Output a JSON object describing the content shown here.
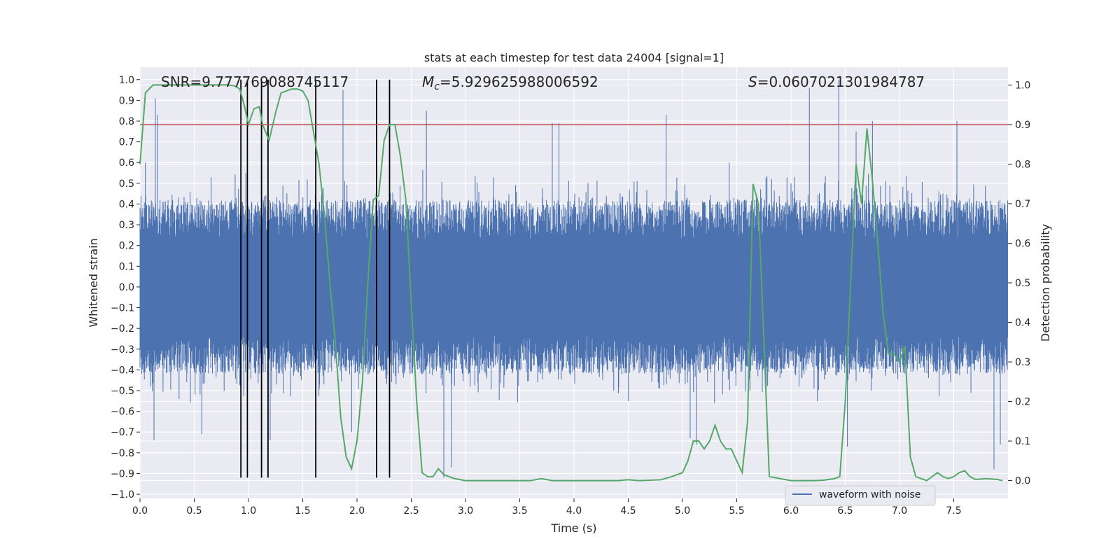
{
  "chart_data": {
    "type": "line",
    "title": "stats at each timestep for test data 24004 [signal=1]",
    "xlabel": "Time (s)",
    "ylabel": "Whitened strain",
    "y2label": "Detection probability",
    "xlim": [
      0.0,
      8.0
    ],
    "ylim": [
      -1.02,
      1.06
    ],
    "y2lim": [
      -0.045,
      1.045
    ],
    "grid": true,
    "x_ticks": [
      0.0,
      0.5,
      1.0,
      1.5,
      2.0,
      2.5,
      3.0,
      3.5,
      4.0,
      4.5,
      5.0,
      5.5,
      6.0,
      6.5,
      7.0,
      7.5
    ],
    "x_tick_labels": [
      "0.0",
      "0.5",
      "1.0",
      "1.5",
      "2.0",
      "2.5",
      "3.0",
      "3.5",
      "4.0",
      "4.5",
      "5.0",
      "5.5",
      "6.0",
      "6.5",
      "7.0",
      "7.5"
    ],
    "y_ticks": [
      1.0,
      0.9,
      0.8,
      0.7,
      0.6,
      0.5,
      0.4,
      0.3,
      0.2,
      0.1,
      0.0,
      -0.1,
      -0.2,
      -0.3,
      -0.4,
      -0.5,
      -0.6,
      -0.7,
      -0.8,
      -0.9,
      -1.0
    ],
    "y_tick_labels": [
      "1.0",
      "0.9",
      "0.8",
      "0.7",
      "0.6",
      "0.5",
      "0.4",
      "0.3",
      "0.2",
      "0.1",
      "0.0",
      "−0.1",
      "−0.2",
      "−0.3",
      "−0.4",
      "−0.5",
      "−0.6",
      "−0.7",
      "−0.8",
      "−0.9",
      "−1.0"
    ],
    "y2_ticks": [
      1.0,
      0.9,
      0.8,
      0.7,
      0.6,
      0.5,
      0.4,
      0.3,
      0.2,
      0.1,
      0.0
    ],
    "y2_tick_labels": [
      "1.0",
      "0.9",
      "0.8",
      "0.7",
      "0.6",
      "0.5",
      "0.4",
      "0.3",
      "0.2",
      "0.1",
      "0.0"
    ],
    "annotations": {
      "snr": "SNR=9.777769088745117",
      "mc_symbol": "M",
      "mc_subscript": "c",
      "mc_value": "=5.929625988006592",
      "s_symbol": "S",
      "s_value": "=0.0607021301984787"
    },
    "legend": {
      "label": "waveform with noise",
      "position": "lower-right"
    },
    "threshold": {
      "axis": "right",
      "value": 0.9
    },
    "event_lines": {
      "times": [
        0.93,
        0.99,
        1.12,
        1.18,
        1.62,
        2.18,
        2.3
      ],
      "ymin": -0.92,
      "ymax": 1.0
    },
    "waveform": {
      "name": "waveform with noise",
      "duration": 8.0,
      "samples": 2600,
      "band_amplitude": 0.42,
      "spike_peaks": [
        [
          0.05,
          0.6
        ],
        [
          0.14,
          0.91
        ],
        [
          0.16,
          0.83
        ],
        [
          0.13,
          -0.74
        ],
        [
          0.57,
          -0.71
        ],
        [
          0.93,
          0.78
        ],
        [
          1.12,
          0.76
        ],
        [
          1.18,
          -0.73
        ],
        [
          1.2,
          -0.74
        ],
        [
          1.87,
          0.95
        ],
        [
          1.95,
          -0.7
        ],
        [
          2.64,
          0.85
        ],
        [
          2.8,
          -0.92
        ],
        [
          2.87,
          -0.87
        ],
        [
          3.8,
          0.79
        ],
        [
          3.86,
          0.79
        ],
        [
          4.85,
          0.83
        ],
        [
          5.07,
          -0.73
        ],
        [
          5.13,
          -0.76
        ],
        [
          5.43,
          0.6
        ],
        [
          6.17,
          0.96
        ],
        [
          6.44,
          1.0
        ],
        [
          6.52,
          -0.77
        ],
        [
          6.6,
          0.75
        ],
        [
          6.75,
          0.8
        ],
        [
          7.53,
          0.8
        ],
        [
          7.87,
          -0.88
        ],
        [
          7.93,
          -0.76
        ]
      ],
      "color": "#4c72b0"
    },
    "series": [
      {
        "name": "detection probability",
        "axis": "right",
        "color": "#55a868",
        "x": [
          0.0,
          0.05,
          0.12,
          0.2,
          0.3,
          0.4,
          0.5,
          0.6,
          0.7,
          0.8,
          0.87,
          0.92,
          0.96,
          1.0,
          1.05,
          1.1,
          1.13,
          1.19,
          1.25,
          1.3,
          1.35,
          1.4,
          1.45,
          1.5,
          1.55,
          1.6,
          1.65,
          1.7,
          1.75,
          1.8,
          1.85,
          1.9,
          1.95,
          2.0,
          2.05,
          2.1,
          2.15,
          2.2,
          2.25,
          2.3,
          2.35,
          2.4,
          2.45,
          2.5,
          2.55,
          2.6,
          2.65,
          2.7,
          2.75,
          2.8,
          2.85,
          2.9,
          3.0,
          3.2,
          3.4,
          3.6,
          3.7,
          3.8,
          4.0,
          4.2,
          4.4,
          4.5,
          4.6,
          4.8,
          4.9,
          5.0,
          5.05,
          5.1,
          5.15,
          5.2,
          5.25,
          5.3,
          5.35,
          5.4,
          5.45,
          5.5,
          5.55,
          5.6,
          5.65,
          5.7,
          5.8,
          6.0,
          6.2,
          6.3,
          6.35,
          6.4,
          6.45,
          6.5,
          6.55,
          6.6,
          6.65,
          6.7,
          6.75,
          6.8,
          6.85,
          6.9,
          6.95,
          7.0,
          7.05,
          7.1,
          7.15,
          7.2,
          7.25,
          7.3,
          7.35,
          7.4,
          7.45,
          7.5,
          7.55,
          7.6,
          7.65,
          7.7,
          7.8,
          7.9,
          7.95
        ],
        "y": [
          0.8,
          0.98,
          1.0,
          1.0,
          1.0,
          1.0,
          1.0,
          1.0,
          1.0,
          1.0,
          0.998,
          0.99,
          0.95,
          0.9,
          0.94,
          0.945,
          0.9,
          0.86,
          0.93,
          0.98,
          0.985,
          0.99,
          0.99,
          0.985,
          0.96,
          0.88,
          0.8,
          0.67,
          0.5,
          0.35,
          0.16,
          0.06,
          0.03,
          0.1,
          0.25,
          0.5,
          0.71,
          0.72,
          0.86,
          0.9,
          0.9,
          0.82,
          0.71,
          0.45,
          0.2,
          0.02,
          0.01,
          0.01,
          0.03,
          0.015,
          0.01,
          0.005,
          0.0,
          0.0,
          0.0,
          0.0,
          0.005,
          0.0,
          0.0,
          0.0,
          0.0,
          0.002,
          0.0,
          0.002,
          0.01,
          0.02,
          0.05,
          0.1,
          0.1,
          0.08,
          0.1,
          0.14,
          0.1,
          0.08,
          0.08,
          0.05,
          0.02,
          0.15,
          0.75,
          0.7,
          0.01,
          0.0,
          0.0,
          0.001,
          0.003,
          0.005,
          0.01,
          0.2,
          0.5,
          0.8,
          0.7,
          0.89,
          0.76,
          0.6,
          0.42,
          0.32,
          0.32,
          0.3,
          0.34,
          0.06,
          0.01,
          0.005,
          0.0,
          0.01,
          0.02,
          0.01,
          0.005,
          0.01,
          0.02,
          0.025,
          0.01,
          0.003,
          0.005,
          0.003,
          0.0
        ]
      }
    ]
  }
}
